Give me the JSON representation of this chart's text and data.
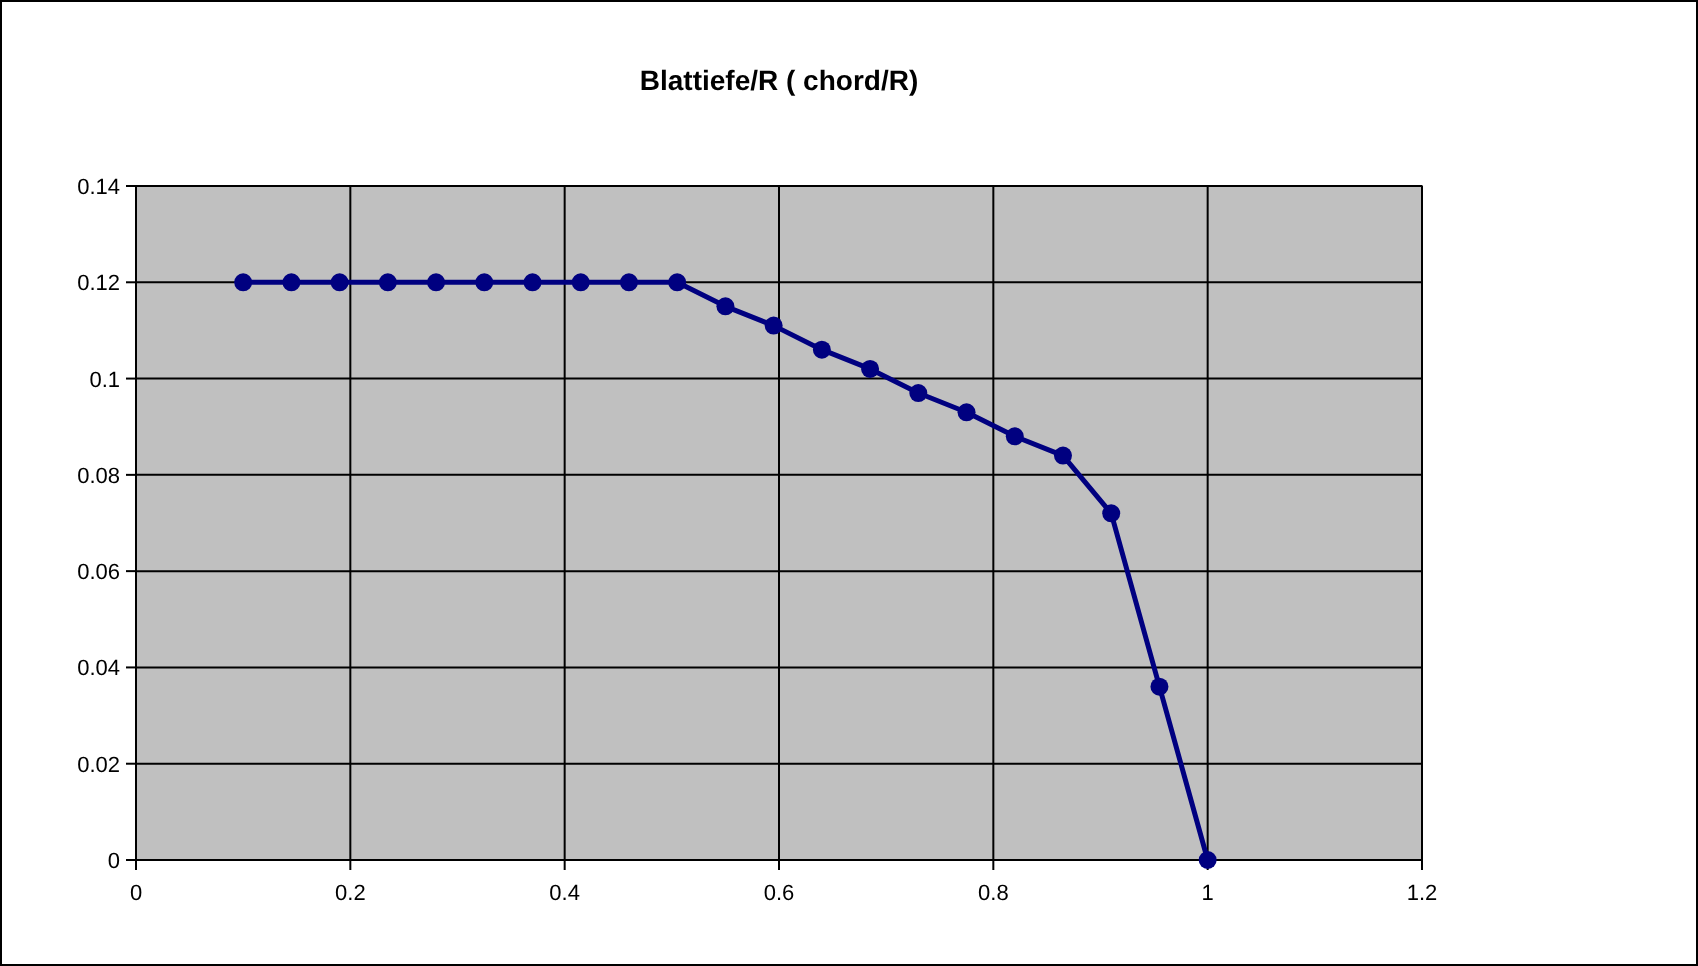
{
  "chart_data": {
    "type": "line",
    "title": "Blattiefe/R ( chord/R)",
    "x": [
      0.1,
      0.145,
      0.19,
      0.235,
      0.28,
      0.325,
      0.37,
      0.415,
      0.46,
      0.505,
      0.55,
      0.595,
      0.64,
      0.685,
      0.73,
      0.775,
      0.82,
      0.865,
      0.91,
      0.955,
      1.0
    ],
    "series": [
      {
        "color": "#000080",
        "values": [
          0.12,
          0.12,
          0.12,
          0.12,
          0.12,
          0.12,
          0.12,
          0.12,
          0.12,
          0.12,
          0.115,
          0.111,
          0.106,
          0.102,
          0.097,
          0.093,
          0.088,
          0.084,
          0.072,
          0.036,
          0
        ]
      }
    ],
    "xlim": [
      0,
      1.2
    ],
    "xticks": [
      0,
      0.2,
      0.4,
      0.6,
      0.8,
      1,
      1.2
    ],
    "ylim": [
      0,
      0.14
    ],
    "yticks": [
      0,
      0.02,
      0.04,
      0.06,
      0.08,
      0.1,
      0.12,
      0.14
    ],
    "grid": true,
    "marker": "circle",
    "line_style": "solid"
  }
}
